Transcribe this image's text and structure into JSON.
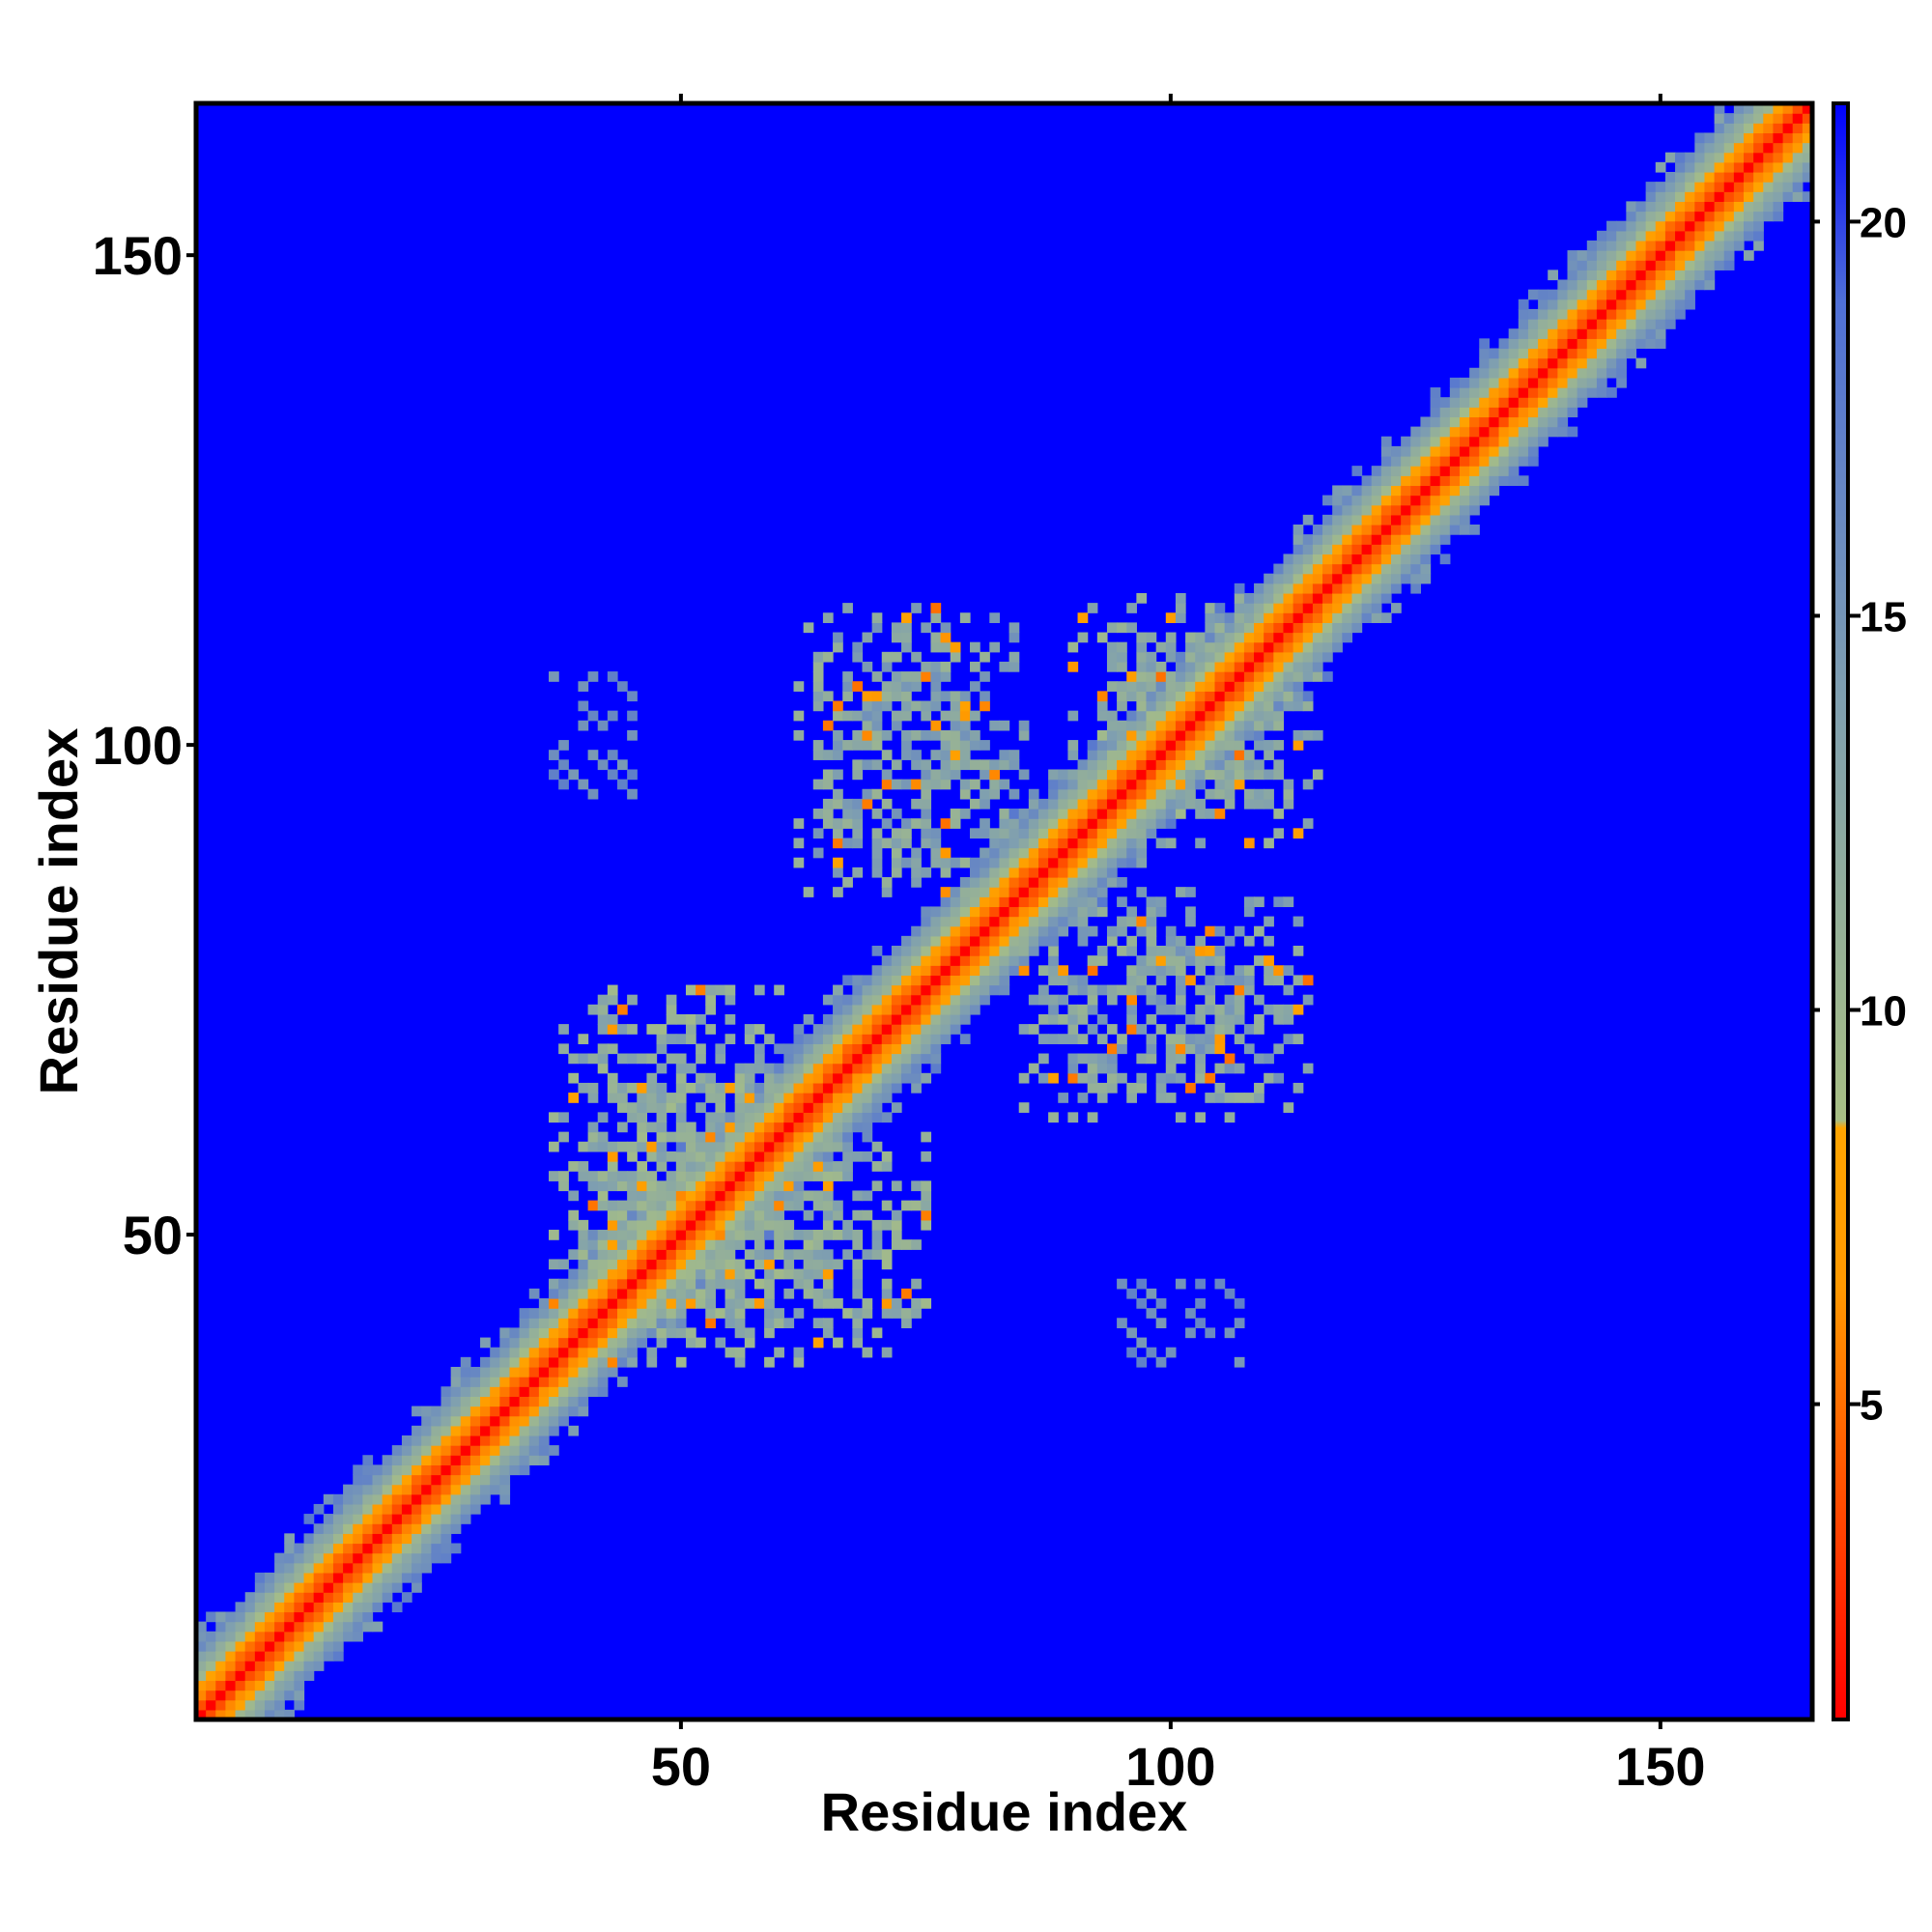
{
  "chart_data": {
    "type": "heatmap",
    "title": "",
    "xlabel": "Residue index",
    "ylabel": "Residue index",
    "n_residues": 165,
    "xlim": [
      0.5,
      165.5
    ],
    "ylim": [
      0.5,
      165.5
    ],
    "x_ticks": [
      50,
      100,
      150
    ],
    "y_ticks": [
      50,
      100,
      150
    ],
    "x_tick_labels": [
      "50",
      "100",
      "150"
    ],
    "y_tick_labels": [
      "50",
      "100",
      "150"
    ],
    "colorbar": {
      "range": [
        1,
        21.5
      ],
      "ticks": [
        5,
        10,
        15,
        20
      ],
      "tick_labels": [
        "5",
        "10",
        "15",
        "20"
      ],
      "stops": [
        {
          "value": 1,
          "color": "#ff0000"
        },
        {
          "value": 6.5,
          "color": "#ff9900"
        },
        {
          "value": 8.5,
          "color": "#ffa500"
        },
        {
          "value": 8.6,
          "color": "#a8bf84"
        },
        {
          "value": 14,
          "color": "#7f9fb0"
        },
        {
          "value": 19,
          "color": "#4f6fd6"
        },
        {
          "value": 21.5,
          "color": "#0000ff"
        }
      ]
    },
    "background_color": "#0000ff",
    "diagonal_band": [
      {
        "offset": 0,
        "value": 1
      },
      {
        "offset": 1,
        "value": 3.8
      },
      {
        "offset": 2,
        "value": 5.5
      },
      {
        "offset": 3,
        "value": 7.5
      },
      {
        "offset": 4,
        "value": 10
      },
      {
        "offset": 5,
        "value": 12
      },
      {
        "offset": 6,
        "value": 14
      },
      {
        "offset": 7,
        "value": 16
      }
    ],
    "structured_regions": [
      {
        "x_range": [
          37,
          62
        ],
        "y_range": [
          37,
          75
        ],
        "mean_value": 12
      },
      {
        "x_range": [
          53,
          80
        ],
        "y_range": [
          33,
          52
        ],
        "mean_value": 13
      },
      {
        "x_range": [
          62,
          85
        ],
        "y_range": [
          85,
          114
        ],
        "mean_value": 13
      },
      {
        "x_range": [
          88,
          115
        ],
        "y_range": [
          65,
          90
        ],
        "mean_value": 13
      },
      {
        "x_range": [
          90,
          114
        ],
        "y_range": [
          90,
          115
        ],
        "mean_value": 12
      }
    ],
    "sparse_contacts": [
      {
        "x_range": [
          37,
          45
        ],
        "y_range": [
          95,
          107
        ],
        "mean_value": 16
      },
      {
        "x_range": [
          94,
          107
        ],
        "y_range": [
          37,
          46
        ],
        "mean_value": 16
      }
    ]
  }
}
